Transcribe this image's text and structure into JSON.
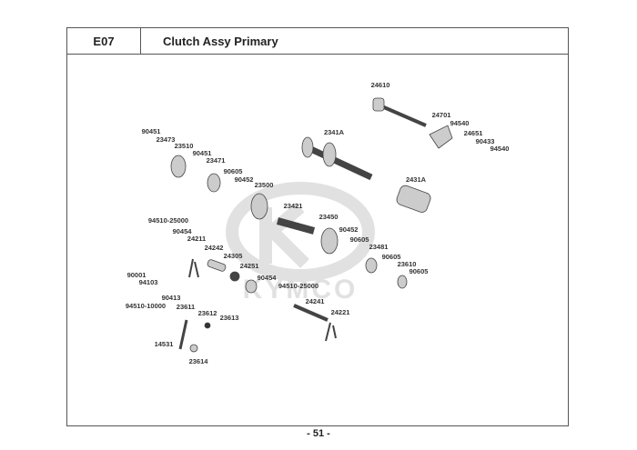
{
  "header": {
    "code": "E07",
    "title": "Clutch Assy Primary"
  },
  "watermark_logo": "KYMCO",
  "part_labels": [
    "24610",
    "24701",
    "94540",
    "24651",
    "90433",
    "94540",
    "2341A",
    "90451",
    "23473",
    "23510",
    "90451",
    "23471",
    "90605",
    "90452",
    "23500",
    "2431A",
    "23421",
    "23450",
    "90452",
    "90605",
    "23481",
    "90605",
    "23610",
    "90605",
    "94510-25000",
    "90454",
    "24211",
    "24242",
    "24305",
    "24251",
    "90454",
    "94510-25000",
    "24241",
    "24221",
    "90001",
    "94103",
    "90413",
    "94510-10000",
    "23611",
    "23612",
    "23613",
    "14531",
    "23614"
  ],
  "footer": {
    "page_number": "- 51 -"
  }
}
